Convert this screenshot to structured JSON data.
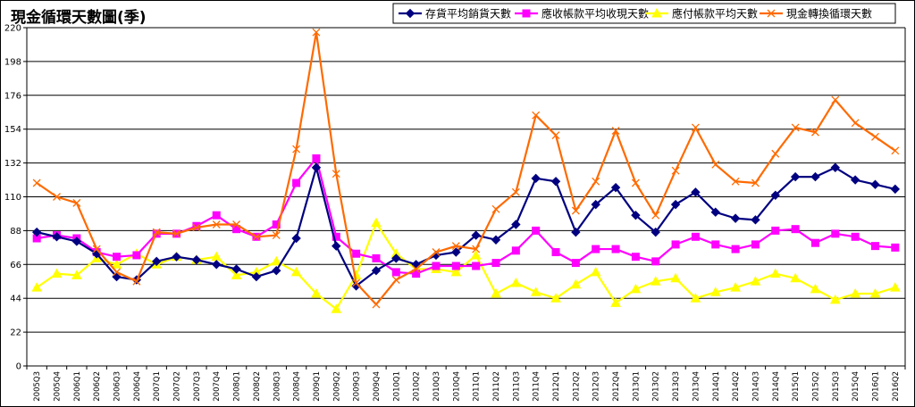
{
  "chart_data": {
    "type": "line",
    "title": "現金循環天數圖(季)",
    "ylim": [
      0,
      220
    ],
    "yticks": [
      0,
      22,
      44,
      66,
      88,
      110,
      132,
      154,
      176,
      198,
      220
    ],
    "grid": "horizontal",
    "legend_position": "top",
    "categories": [
      "2005Q3",
      "2005Q4",
      "2006Q1",
      "2006Q2",
      "2006Q3",
      "2006Q4",
      "2007Q1",
      "2007Q2",
      "2007Q3",
      "2007Q4",
      "2008Q1",
      "2008Q2",
      "2008Q3",
      "2008Q4",
      "2009Q1",
      "2009Q2",
      "2009Q3",
      "2009Q4",
      "2010Q1",
      "2010Q2",
      "2010Q3",
      "2010Q4",
      "2011Q1",
      "2011Q2",
      "2011Q3",
      "2011Q4",
      "2012Q1",
      "2012Q2",
      "2012Q3",
      "2012Q4",
      "2013Q1",
      "2013Q2",
      "2013Q3",
      "2013Q4",
      "2014Q1",
      "2014Q2",
      "2014Q3",
      "2014Q4",
      "2015Q1",
      "2015Q2",
      "2015Q3",
      "2015Q4",
      "2016Q1",
      "2016Q2"
    ],
    "series": [
      {
        "name": "存貨平均銷貨天數",
        "color": "#000080",
        "marker": "diamond",
        "values": [
          87,
          84,
          81,
          73,
          58,
          56,
          68,
          71,
          69,
          66,
          63,
          58,
          62,
          83,
          129,
          78,
          52,
          62,
          70,
          66,
          72,
          74,
          85,
          82,
          92,
          122,
          120,
          87,
          105,
          116,
          98,
          87,
          105,
          113,
          100,
          96,
          95,
          111,
          123,
          123,
          129,
          121,
          118,
          115
        ]
      },
      {
        "name": "應收帳款平均收現天數",
        "color": "#ff00ff",
        "marker": "square",
        "values": [
          83,
          85,
          83,
          74,
          71,
          72,
          86,
          86,
          91,
          98,
          89,
          84,
          92,
          119,
          135,
          84,
          73,
          70,
          61,
          60,
          65,
          65,
          65,
          67,
          75,
          88,
          74,
          67,
          76,
          76,
          71,
          68,
          79,
          84,
          79,
          76,
          79,
          88,
          89,
          80,
          86,
          84,
          78,
          77
        ]
      },
      {
        "name": "應付帳款平均天數",
        "color": "#ffff00",
        "marker": "triangle",
        "values": [
          51,
          60,
          59,
          70,
          66,
          73,
          66,
          71,
          69,
          71,
          59,
          61,
          68,
          61,
          47,
          37,
          59,
          93,
          73,
          63,
          63,
          61,
          72,
          47,
          54,
          48,
          44,
          53,
          61,
          41,
          50,
          55,
          57,
          44,
          48,
          51,
          55,
          60,
          57,
          50,
          43,
          47,
          47,
          51
        ]
      },
      {
        "name": "現金轉換循環天數",
        "color": "#ff6a00",
        "marker": "x",
        "values": [
          119,
          110,
          106,
          76,
          61,
          55,
          87,
          86,
          90,
          92,
          92,
          84,
          85,
          141,
          217,
          125,
          54,
          40,
          56,
          63,
          74,
          78,
          76,
          102,
          113,
          163,
          150,
          101,
          120,
          153,
          119,
          98,
          127,
          155,
          131,
          120,
          119,
          138,
          155,
          152,
          173,
          158,
          149,
          140
        ]
      }
    ]
  }
}
